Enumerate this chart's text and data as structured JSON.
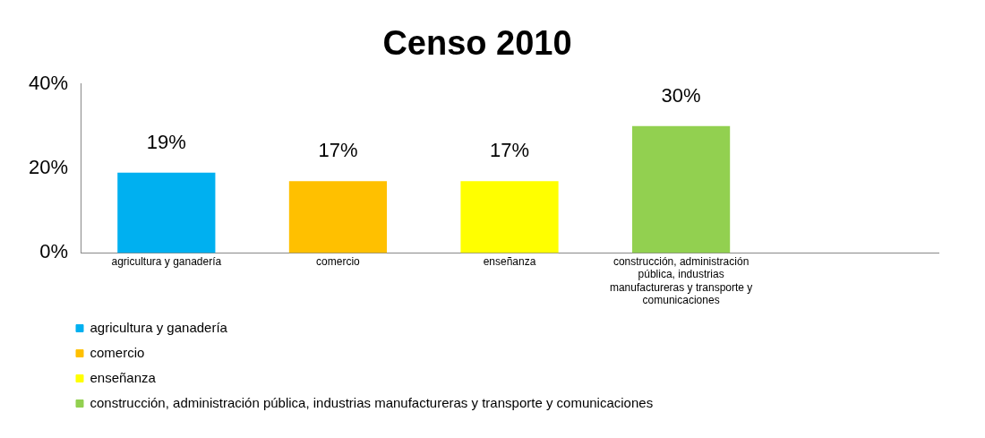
{
  "chart_data": {
    "type": "bar",
    "title": "Censo 2010",
    "categories": [
      "agricultura y ganadería",
      "comercio",
      "enseñanza",
      "construcción, administración pública, industrias manufactureras y transporte y comunicaciones",
      null
    ],
    "series": [
      {
        "name": "agricultura y ganadería",
        "color": "#00b0f0",
        "values": [
          19,
          null,
          null,
          null,
          null
        ],
        "value_labels": [
          "19%",
          null,
          null,
          null,
          null
        ]
      },
      {
        "name": "comercio",
        "color": "#ffc000",
        "values": [
          null,
          17,
          null,
          null,
          null
        ],
        "value_labels": [
          null,
          "17%",
          null,
          null,
          null
        ]
      },
      {
        "name": "enseñanza",
        "color": "#ffff00",
        "values": [
          null,
          null,
          17,
          null,
          null
        ],
        "value_labels": [
          null,
          null,
          "17%",
          null,
          null
        ]
      },
      {
        "name": "construcción, administración pública, industrias manufactureras y transporte y comunicaciones",
        "color": "#92d050",
        "values": [
          null,
          null,
          null,
          30,
          null
        ],
        "value_labels": [
          null,
          null,
          null,
          "30%",
          null
        ]
      }
    ],
    "ylim": [
      0,
      40
    ],
    "yticks": [
      {
        "value": 0,
        "label": "0%"
      },
      {
        "value": 20,
        "label": "20%"
      },
      {
        "value": 40,
        "label": "40%"
      }
    ],
    "grid": false,
    "legend": "bottom left"
  }
}
